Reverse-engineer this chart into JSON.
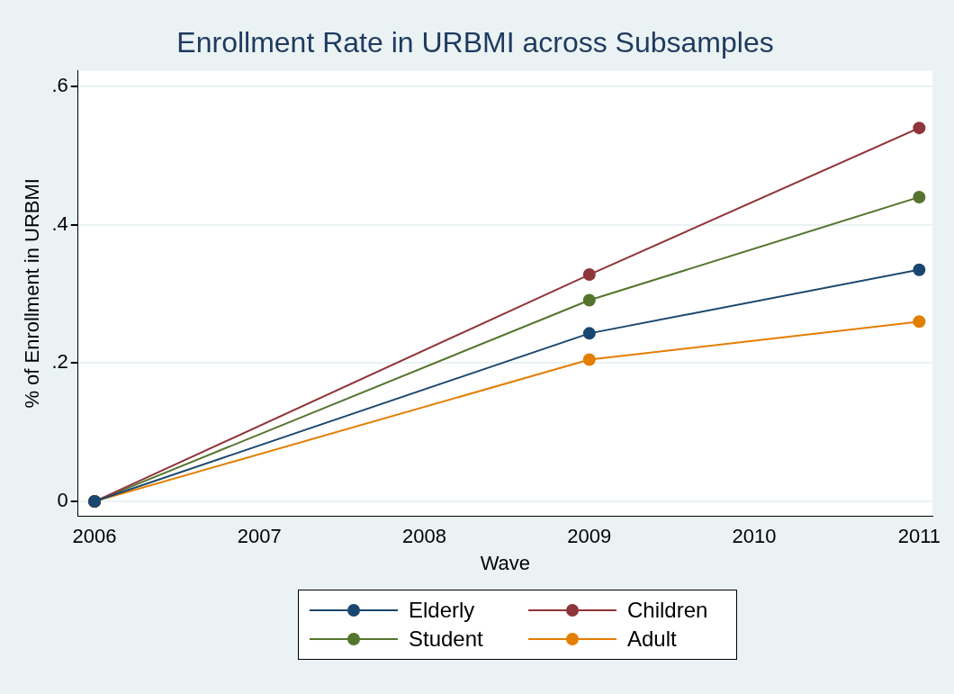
{
  "chart_data": {
    "type": "line",
    "title": "Enrollment Rate in URBMI across Subsamples",
    "xlabel": "Wave",
    "ylabel": "% of Enrollment in URBMI",
    "x": [
      2006,
      2009,
      2011
    ],
    "series": [
      {
        "name": "Elderly",
        "color": "#1a476f",
        "values": [
          0,
          0.243,
          0.335
        ]
      },
      {
        "name": "Children",
        "color": "#90353b",
        "values": [
          0,
          0.328,
          0.54
        ]
      },
      {
        "name": "Student",
        "color": "#55752f",
        "values": [
          0,
          0.291,
          0.44
        ]
      },
      {
        "name": "Adult",
        "color": "#e37e00",
        "values": [
          0,
          0.205,
          0.26
        ]
      }
    ],
    "xlim": [
      2005.9,
      2011.08
    ],
    "xticks": [
      2006,
      2007,
      2008,
      2009,
      2010,
      2011
    ],
    "ylim": [
      -0.021,
      0.623
    ],
    "yticks": [
      {
        "value": 0,
        "label": "0"
      },
      {
        "value": 0.2,
        "label": ".2"
      },
      {
        "value": 0.4,
        "label": ".4"
      },
      {
        "value": 0.6,
        "label": ".6"
      }
    ],
    "grid": "y",
    "legend": "bottom",
    "marker": "circle",
    "line_style": "solid"
  }
}
